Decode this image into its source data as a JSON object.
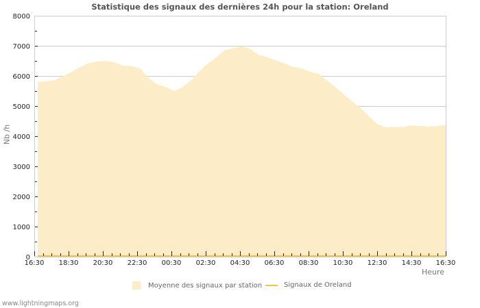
{
  "title": "Statistique des signaux des dernières 24h pour la station: Oreland",
  "footer": "www.lightningmaps.org",
  "legend": {
    "area_label": "Moyenne des signaux par station",
    "line_label": "Signaux de Oreland"
  },
  "colors": {
    "area_fill": "#fdecc8",
    "line": "#f5c542",
    "grid": "#cccccc",
    "text": "#555555"
  },
  "chart_data": {
    "type": "area",
    "title": "Statistique des signaux des dernières 24h pour la station: Oreland",
    "xlabel": "Heure",
    "ylabel": "Nb /h",
    "ylim": [
      0,
      8000
    ],
    "yticks": [
      0,
      1000,
      2000,
      3000,
      4000,
      5000,
      6000,
      7000,
      8000
    ],
    "xticks": [
      "16:30",
      "18:30",
      "20:30",
      "22:30",
      "00:30",
      "02:30",
      "04:30",
      "06:30",
      "08:30",
      "10:30",
      "12:30",
      "14:30",
      "16:30"
    ],
    "grid": true,
    "legend_position": "bottom",
    "x": [
      "16:30",
      "17:00",
      "17:30",
      "18:00",
      "18:30",
      "19:00",
      "19:30",
      "20:00",
      "20:30",
      "21:00",
      "21:30",
      "22:00",
      "22:30",
      "23:00",
      "23:30",
      "00:00",
      "00:30",
      "01:00",
      "01:30",
      "02:00",
      "02:30",
      "03:00",
      "03:30",
      "04:00",
      "04:30",
      "05:00",
      "05:30",
      "06:00",
      "06:30",
      "07:00",
      "07:30",
      "08:00",
      "08:30",
      "09:00",
      "09:30",
      "10:00",
      "10:30",
      "11:00",
      "11:30",
      "12:00",
      "12:30",
      "13:00",
      "13:30",
      "14:00",
      "14:30",
      "15:00",
      "15:30",
      "16:00",
      "16:30"
    ],
    "series": [
      {
        "name": "Moyenne des signaux par station",
        "type": "area",
        "values": [
          5800,
          5830,
          5860,
          5990,
          6140,
          6300,
          6430,
          6480,
          6500,
          6460,
          6340,
          6330,
          6250,
          5950,
          5730,
          5640,
          5500,
          5620,
          5840,
          6150,
          6410,
          6620,
          6860,
          6920,
          6980,
          6900,
          6700,
          6620,
          6520,
          6420,
          6300,
          6260,
          6140,
          6080,
          5860,
          5630,
          5390,
          5150,
          4930,
          4650,
          4390,
          4300,
          4300,
          4310,
          4360,
          4340,
          4320,
          4340,
          4380
        ]
      },
      {
        "name": "Signaux de Oreland",
        "type": "line",
        "values": [
          0,
          0,
          0,
          0,
          0,
          0,
          0,
          0,
          0,
          0,
          0,
          0,
          0,
          0,
          0,
          0,
          0,
          0,
          0,
          0,
          0,
          0,
          0,
          0,
          0,
          0,
          0,
          0,
          0,
          0,
          0,
          0,
          0,
          0,
          0,
          0,
          0,
          0,
          0,
          0,
          0,
          0,
          0,
          0,
          0,
          0,
          0,
          0,
          0
        ]
      }
    ]
  }
}
